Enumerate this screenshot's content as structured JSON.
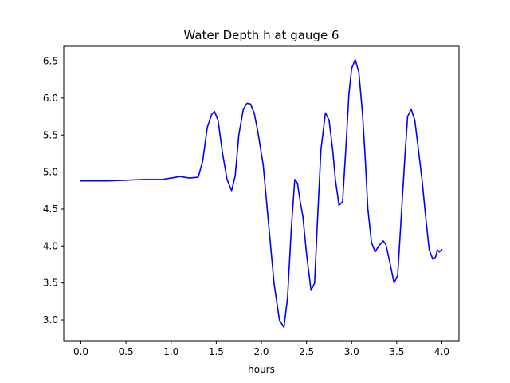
{
  "chart_data": {
    "type": "line",
    "title": "Water Depth h at gauge 6",
    "xlabel": "hours",
    "ylabel": "",
    "xlim": [
      -0.19,
      4.19
    ],
    "ylim": [
      2.72,
      6.7
    ],
    "xticks": [
      0.0,
      0.5,
      1.0,
      1.5,
      2.0,
      2.5,
      3.0,
      3.5,
      4.0
    ],
    "xtick_labels": [
      "0.0",
      "0.5",
      "1.0",
      "1.5",
      "2.0",
      "2.5",
      "3.0",
      "3.5",
      "4.0"
    ],
    "yticks": [
      3.0,
      3.5,
      4.0,
      4.5,
      5.0,
      5.5,
      6.0,
      6.5
    ],
    "ytick_labels": [
      "3.0",
      "3.5",
      "4.0",
      "4.5",
      "5.0",
      "5.5",
      "6.0",
      "6.5"
    ],
    "grid": false,
    "series": [
      {
        "color": "#0000ff",
        "x": [
          0.0,
          0.3,
          0.5,
          0.7,
          0.9,
          1.0,
          1.1,
          1.2,
          1.3,
          1.35,
          1.4,
          1.45,
          1.48,
          1.52,
          1.57,
          1.62,
          1.67,
          1.71,
          1.75,
          1.8,
          1.84,
          1.88,
          1.92,
          1.96,
          2.02,
          2.08,
          2.14,
          2.2,
          2.25,
          2.29,
          2.33,
          2.37,
          2.4,
          2.43,
          2.46,
          2.5,
          2.55,
          2.59,
          2.62,
          2.66,
          2.71,
          2.75,
          2.79,
          2.82,
          2.86,
          2.9,
          2.94,
          2.97,
          3.0,
          3.04,
          3.08,
          3.12,
          3.15,
          3.18,
          3.22,
          3.26,
          3.3,
          3.35,
          3.38,
          3.42,
          3.47,
          3.51,
          3.55,
          3.59,
          3.62,
          3.66,
          3.7,
          3.74,
          3.78,
          3.82,
          3.86,
          3.9,
          3.93,
          3.95,
          3.97,
          4.0
        ],
        "y": [
          4.88,
          4.88,
          4.89,
          4.9,
          4.9,
          4.92,
          4.94,
          4.92,
          4.93,
          5.15,
          5.6,
          5.78,
          5.82,
          5.7,
          5.25,
          4.9,
          4.75,
          4.95,
          5.5,
          5.85,
          5.93,
          5.92,
          5.8,
          5.55,
          5.1,
          4.3,
          3.5,
          3.0,
          2.9,
          3.3,
          4.2,
          4.9,
          4.85,
          4.6,
          4.4,
          3.9,
          3.4,
          3.5,
          4.3,
          5.3,
          5.8,
          5.7,
          5.3,
          4.9,
          4.55,
          4.6,
          5.4,
          6.05,
          6.4,
          6.52,
          6.35,
          5.8,
          5.2,
          4.5,
          4.05,
          3.92,
          4.0,
          4.07,
          4.02,
          3.8,
          3.5,
          3.6,
          4.4,
          5.2,
          5.75,
          5.85,
          5.7,
          5.3,
          4.9,
          4.4,
          3.95,
          3.82,
          3.85,
          3.95,
          3.92,
          3.95
        ]
      }
    ]
  }
}
